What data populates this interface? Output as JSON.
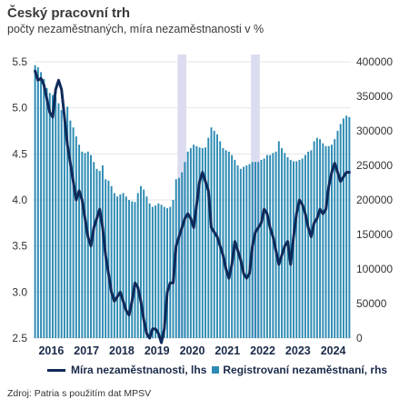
{
  "header": {
    "title": "Český pracovní trh",
    "subtitle": "počty nezaměstnaných, míra nezaměstnanosti v %"
  },
  "legend": {
    "line_label": "Míra nezaměstnanosti, lhs",
    "bar_label": "Registrovaní nezaměstnaní, rhs"
  },
  "source": "Zdroj: Patria s použitím dat MPSV",
  "chart_data": {
    "type": "bar+line",
    "title": "Český pracovní trh",
    "subtitle": "počty nezaměstnaných, míra nezaměstnanosti v %",
    "x_tick_labels": [
      "2016",
      "2017",
      "2018",
      "2019",
      "2020",
      "2021",
      "2022",
      "2023",
      "2024"
    ],
    "left_axis": {
      "min": 2.5,
      "max": 5.5,
      "ticks": [
        "2.5",
        "3.0",
        "3.5",
        "4.0",
        "4.5",
        "5.0",
        "5.5"
      ]
    },
    "right_axis": {
      "min": 0,
      "max": 400000,
      "ticks": [
        "0",
        "50000",
        "100000",
        "150000",
        "200000",
        "250000",
        "300000",
        "350000",
        "400000"
      ]
    },
    "grid": "horizontal",
    "legend_position": "bottom",
    "shaded_periods": [
      {
        "start": "2020-02",
        "end": "2020-04"
      },
      {
        "start": "2022-03",
        "end": "2022-05"
      }
    ],
    "colors": {
      "bars": "#2d8bb3",
      "line": "#0f2a5a",
      "shade": "#dcdcf0"
    },
    "start_month": "2016-01",
    "series": [
      {
        "name": "Registrovaní nezaměstnaní, rhs",
        "axis": "right",
        "kind": "bar",
        "values": [
          395000,
          392000,
          385000,
          375000,
          362000,
          355000,
          352000,
          348000,
          340000,
          330000,
          325000,
          335000,
          315000,
          305000,
          292000,
          280000,
          270000,
          268000,
          270000,
          265000,
          255000,
          245000,
          242000,
          250000,
          230000,
          228000,
          220000,
          210000,
          205000,
          208000,
          210000,
          205000,
          200000,
          198000,
          197000,
          210000,
          220000,
          215000,
          205000,
          195000,
          190000,
          192000,
          195000,
          193000,
          190000,
          188000,
          190000,
          200000,
          230000,
          232000,
          240000,
          255000,
          270000,
          275000,
          280000,
          278000,
          276000,
          275000,
          276000,
          290000,
          305000,
          300000,
          295000,
          285000,
          275000,
          272000,
          270000,
          265000,
          258000,
          250000,
          245000,
          248000,
          250000,
          252000,
          255000,
          255000,
          255000,
          258000,
          260000,
          265000,
          265000,
          268000,
          270000,
          285000,
          275000,
          268000,
          262000,
          258000,
          256000,
          256000,
          258000,
          260000,
          265000,
          270000,
          272000,
          285000,
          290000,
          288000,
          282000,
          278000,
          278000,
          280000,
          288000,
          300000,
          310000,
          318000,
          322000,
          320000
        ]
      },
      {
        "name": "Míra nezaměstnanosti, lhs",
        "axis": "left",
        "kind": "line",
        "values": [
          5.4,
          5.3,
          5.32,
          5.25,
          5.1,
          4.95,
          4.9,
          5.2,
          5.3,
          5.2,
          4.9,
          4.6,
          4.4,
          4.2,
          4.0,
          4.1,
          4.0,
          3.8,
          3.6,
          3.5,
          3.7,
          3.8,
          3.9,
          3.7,
          3.4,
          3.2,
          3.0,
          2.9,
          2.95,
          3.0,
          2.9,
          2.8,
          2.75,
          2.9,
          3.1,
          3.05,
          2.9,
          2.7,
          2.55,
          2.5,
          2.6,
          2.6,
          2.55,
          2.45,
          2.6,
          3.0,
          3.1,
          3.1,
          3.5,
          3.6,
          3.7,
          3.8,
          3.85,
          3.8,
          3.7,
          3.95,
          4.2,
          4.3,
          4.2,
          4.1,
          3.7,
          3.65,
          3.6,
          3.5,
          3.4,
          3.25,
          3.15,
          3.3,
          3.55,
          3.45,
          3.35,
          3.2,
          3.15,
          3.2,
          3.5,
          3.65,
          3.7,
          3.75,
          3.9,
          3.85,
          3.7,
          3.6,
          3.45,
          3.3,
          3.4,
          3.5,
          3.55,
          3.3,
          3.6,
          3.85,
          4.0,
          3.95,
          3.85,
          3.7,
          3.6,
          3.75,
          3.8,
          3.9,
          3.85,
          3.9,
          4.15,
          4.3,
          4.4,
          4.3,
          4.2,
          4.25,
          4.3,
          4.3
        ]
      }
    ]
  }
}
